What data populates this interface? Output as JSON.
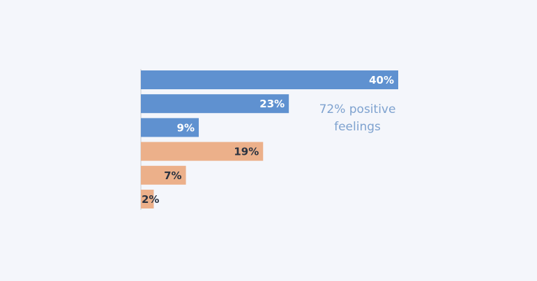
{
  "chart_data": {
    "type": "bar",
    "orientation": "horizontal",
    "categories": [
      null,
      null,
      null,
      null,
      null,
      null
    ],
    "values": [
      40,
      23,
      9,
      19,
      7,
      2
    ],
    "value_labels": [
      "40%",
      "23%",
      "9%",
      "19%",
      "7%",
      "2%"
    ],
    "colors": [
      "#5f91d0",
      "#5f91d0",
      "#5f91d0",
      "#ecb08a",
      "#ecb08a",
      "#ecb08a"
    ],
    "value_label_colors": [
      "#ffffff",
      "#ffffff",
      "#ffffff",
      "#2b3340",
      "#2b3340",
      "#2b3340"
    ],
    "annotation": "72% positive feelings"
  }
}
